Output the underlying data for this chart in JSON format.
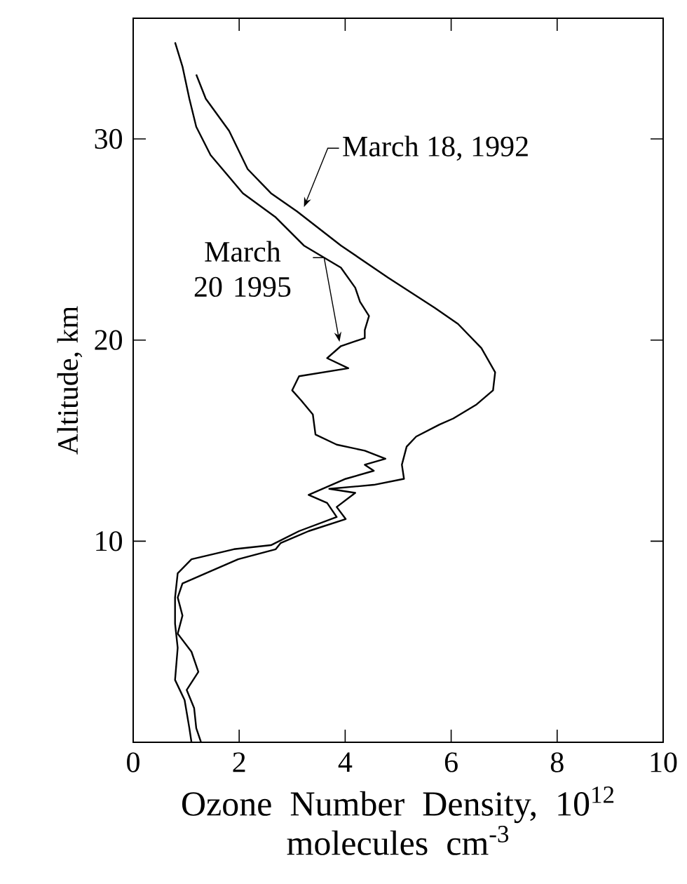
{
  "chart_data": {
    "type": "line",
    "xlabel": "Ozone Number Density, 10$^{12}$ molecules cm$^{-3}$",
    "ylabel": "Altitude, km",
    "xlim": [
      0,
      10
    ],
    "ylim": [
      0,
      36
    ],
    "xticks": [
      0,
      2,
      4,
      6,
      8,
      10
    ],
    "yticks": [
      10,
      20,
      30
    ],
    "tick_labels": "xy",
    "line_style": "solid",
    "marker": "none",
    "grid": false,
    "annotations": [
      {
        "text": "March 18, 1992",
        "x": 3.09,
        "y": 26.4
      },
      {
        "text": "March 20 1995",
        "x": 3.92,
        "y": 19.7
      }
    ],
    "series": [
      {
        "color": "#000000",
        "x": [
          1.19,
          1.37,
          1.81,
          2.16,
          2.6,
          3.09,
          3.92,
          4.81,
          5.69,
          6.13,
          6.57,
          6.83,
          6.79,
          6.48,
          6.04,
          5.78,
          5.34,
          5.16,
          5.07,
          5.11,
          4.54,
          3.7,
          4.19,
          3.84,
          4.01,
          3.31,
          2.78,
          2.69,
          1.98,
          1.37,
          0.93,
          0.84,
          0.93,
          0.84,
          1.1,
          1.23,
          1.01,
          1.15,
          1.19,
          1.28
        ],
        "values": [
          33.2,
          32.0,
          30.4,
          28.5,
          27.3,
          26.4,
          24.7,
          23.1,
          21.6,
          20.8,
          19.6,
          18.4,
          17.5,
          16.8,
          16.1,
          15.8,
          15.2,
          14.7,
          13.8,
          13.1,
          12.8,
          12.6,
          12.4,
          11.7,
          11.1,
          10.5,
          9.9,
          9.6,
          9.1,
          8.4,
          7.9,
          7.2,
          6.3,
          5.4,
          4.5,
          3.5,
          2.6,
          1.7,
          0.7,
          0
        ]
      },
      {
        "color": "#000000",
        "x": [
          0.79,
          0.93,
          1.06,
          1.19,
          1.46,
          2.07,
          2.69,
          3.22,
          3.92,
          4.19,
          4.28,
          4.45,
          4.37,
          4.37,
          3.92,
          3.66,
          4.06,
          3.13,
          3.0,
          3.17,
          3.39,
          3.44,
          3.84,
          4.37,
          4.76,
          4.37,
          4.54,
          4.01,
          3.31,
          3.66,
          3.84,
          3.13,
          2.6,
          1.9,
          1.1,
          0.84,
          0.79,
          0.79,
          0.84,
          0.79,
          0.97,
          1.06,
          1.1
        ],
        "values": [
          34.8,
          33.6,
          32.0,
          30.6,
          29.2,
          27.3,
          26.1,
          24.7,
          23.6,
          22.6,
          21.9,
          21.2,
          20.5,
          20.1,
          19.7,
          19.1,
          18.6,
          18.2,
          17.5,
          17.0,
          16.3,
          15.3,
          14.8,
          14.5,
          14.1,
          13.8,
          13.5,
          13.1,
          12.3,
          11.9,
          11.2,
          10.5,
          9.8,
          9.6,
          9.1,
          8.4,
          7.2,
          5.9,
          4.7,
          3.1,
          2.1,
          0.7,
          0
        ]
      }
    ]
  }
}
